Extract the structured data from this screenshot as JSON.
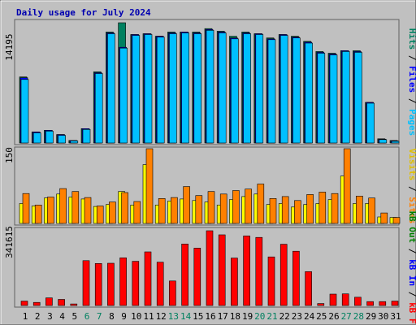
{
  "title": "Daily usage for July 2024",
  "colors": {
    "background": "#c0c0c0",
    "title": "#0000b0",
    "hits": "#008060",
    "files": "#0000ff",
    "pages": "#00c0ff",
    "visits": "#ffff00",
    "sites": "#ff8000",
    "kb_f": "#ff0000",
    "kb_in": "#0000ff",
    "kb_out": "#008000",
    "weekend_label": "#008060"
  },
  "legends": {
    "top": [
      "Pages",
      "Files",
      "Hits"
    ],
    "middle": [
      "Visits",
      "Sites"
    ],
    "bottom": [
      "kB F",
      "kB In",
      "kB Out"
    ]
  },
  "day_labels": [
    "1",
    "2",
    "3",
    "4",
    "5",
    "6",
    "7",
    "8",
    "9",
    "10",
    "11",
    "12",
    "13",
    "14",
    "15",
    "16",
    "17",
    "18",
    "19",
    "20",
    "21",
    "22",
    "23",
    "24",
    "25",
    "26",
    "27",
    "28",
    "29",
    "30",
    "31"
  ],
  "weekend_days": [
    6,
    7,
    13,
    14,
    20,
    21,
    27,
    28
  ],
  "chart_data": [
    {
      "type": "bar",
      "ylabel": "14195",
      "ymax": 14195,
      "series": [
        {
          "name": "Hits",
          "values": [
            7800,
            1300,
            1500,
            1000,
            300,
            1700,
            8400,
            13100,
            14195,
            12800,
            12900,
            12600,
            13100,
            13100,
            13100,
            13500,
            13200,
            12600,
            13100,
            12900,
            12400,
            12800,
            12600,
            12000,
            10800,
            10600,
            10900,
            10900,
            4800,
            500,
            300
          ]
        },
        {
          "name": "Files",
          "values": [
            7700,
            1300,
            1500,
            1000,
            300,
            1700,
            8300,
            13000,
            11300,
            12800,
            12900,
            12600,
            13000,
            13100,
            13000,
            13400,
            13100,
            12400,
            13000,
            12900,
            12300,
            12800,
            12500,
            11900,
            10700,
            10500,
            10900,
            10800,
            4800,
            450,
            250
          ]
        },
        {
          "name": "Pages",
          "values": [
            7500,
            1200,
            1400,
            900,
            250,
            1600,
            8200,
            12900,
            11200,
            12700,
            12800,
            12500,
            12900,
            13000,
            12900,
            13300,
            13000,
            12300,
            12900,
            12800,
            12200,
            12700,
            12400,
            11800,
            10600,
            10400,
            10800,
            10700,
            4700,
            400,
            200
          ]
        }
      ]
    },
    {
      "type": "bar",
      "ylabel": "150",
      "ymax": 150,
      "series": [
        {
          "name": "Visits",
          "values": [
            40,
            35,
            51,
            59,
            53,
            49,
            34,
            38,
            64,
            37,
            118,
            37,
            45,
            49,
            46,
            43,
            37,
            48,
            54,
            59,
            38,
            40,
            33,
            38,
            40,
            48,
            95,
            40,
            40,
            13,
            12
          ]
        },
        {
          "name": "Sites",
          "values": [
            60,
            37,
            53,
            70,
            64,
            52,
            35,
            43,
            62,
            44,
            150,
            50,
            52,
            74,
            56,
            64,
            59,
            66,
            69,
            79,
            50,
            54,
            46,
            58,
            63,
            60,
            150,
            55,
            51,
            21,
            12
          ]
        }
      ]
    },
    {
      "type": "bar",
      "ylabel": "341615",
      "ymax": 341615,
      "series": [
        {
          "name": "kB F",
          "values": [
            20000,
            14000,
            35000,
            28000,
            7000,
            205000,
            192000,
            193000,
            218000,
            202000,
            245000,
            198000,
            112000,
            281000,
            262000,
            341615,
            323000,
            217000,
            318000,
            311000,
            222000,
            280000,
            248000,
            155000,
            9000,
            52000,
            53000,
            38000,
            18000,
            18000,
            20000
          ]
        }
      ]
    }
  ]
}
